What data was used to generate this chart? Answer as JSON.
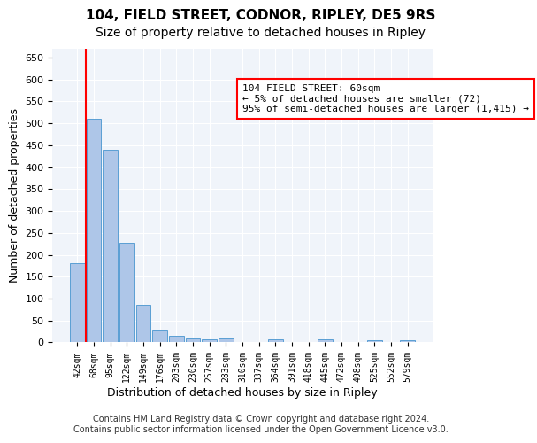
{
  "title": "104, FIELD STREET, CODNOR, RIPLEY, DE5 9RS",
  "subtitle": "Size of property relative to detached houses in Ripley",
  "xlabel": "Distribution of detached houses by size in Ripley",
  "ylabel": "Number of detached properties",
  "categories": [
    "42sqm",
    "68sqm",
    "95sqm",
    "122sqm",
    "149sqm",
    "176sqm",
    "203sqm",
    "230sqm",
    "257sqm",
    "283sqm",
    "310sqm",
    "337sqm",
    "364sqm",
    "391sqm",
    "418sqm",
    "445sqm",
    "472sqm",
    "498sqm",
    "525sqm",
    "552sqm",
    "579sqm"
  ],
  "values": [
    180,
    510,
    440,
    228,
    85,
    28,
    15,
    10,
    7,
    10,
    0,
    0,
    8,
    0,
    0,
    7,
    0,
    0,
    5,
    0,
    5
  ],
  "bar_color": "#aec6e8",
  "bar_edge_color": "#5a9fd4",
  "annotation_box_text": "104 FIELD STREET: 60sqm\n← 5% of detached houses are smaller (72)\n95% of semi-detached houses are larger (1,415) →",
  "annotation_box_color": "white",
  "annotation_box_edge_color": "red",
  "redline_x": 60,
  "redline_bar_index": 0,
  "ylim": [
    0,
    670
  ],
  "yticks": [
    0,
    50,
    100,
    150,
    200,
    250,
    300,
    350,
    400,
    450,
    500,
    550,
    600,
    650
  ],
  "footer_line1": "Contains HM Land Registry data © Crown copyright and database right 2024.",
  "footer_line2": "Contains public sector information licensed under the Open Government Licence v3.0.",
  "bg_color": "#f0f4fa",
  "grid_color": "white",
  "title_fontsize": 11,
  "subtitle_fontsize": 10,
  "tick_fontsize": 7,
  "ylabel_fontsize": 9,
  "xlabel_fontsize": 9,
  "annotation_fontsize": 8,
  "footer_fontsize": 7
}
